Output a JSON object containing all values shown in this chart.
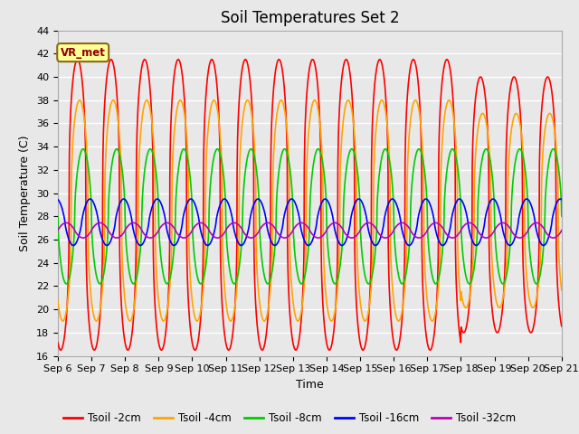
{
  "title": "Soil Temperatures Set 2",
  "xlabel": "Time",
  "ylabel": "Soil Temperature (C)",
  "ylim": [
    16,
    44
  ],
  "xlim": [
    0,
    15
  ],
  "yticks": [
    16,
    18,
    20,
    22,
    24,
    26,
    28,
    30,
    32,
    34,
    36,
    38,
    40,
    42,
    44
  ],
  "xtick_labels": [
    "Sep 6",
    "Sep 7",
    "Sep 8",
    "Sep 9",
    "Sep 10",
    "Sep 11",
    "Sep 12",
    "Sep 13",
    "Sep 14",
    "Sep 15",
    "Sep 16",
    "Sep 17",
    "Sep 18",
    "Sep 19",
    "Sep 20",
    "Sep 21"
  ],
  "xtick_positions": [
    0,
    1,
    2,
    3,
    4,
    5,
    6,
    7,
    8,
    9,
    10,
    11,
    12,
    13,
    14,
    15
  ],
  "series": {
    "Tsoil -2cm": {
      "color": "#FF0000",
      "lw": 1.2
    },
    "Tsoil -4cm": {
      "color": "#FFA500",
      "lw": 1.2
    },
    "Tsoil -8cm": {
      "color": "#00CC00",
      "lw": 1.2
    },
    "Tsoil -16cm": {
      "color": "#0000FF",
      "lw": 1.2
    },
    "Tsoil -32cm": {
      "color": "#BB00BB",
      "lw": 1.2
    }
  },
  "annotation_label": "VR_met",
  "bg_color": "#E8E8E8",
  "grid_color": "#FFFFFF",
  "title_fontsize": 12,
  "label_fontsize": 9,
  "tick_fontsize": 8
}
